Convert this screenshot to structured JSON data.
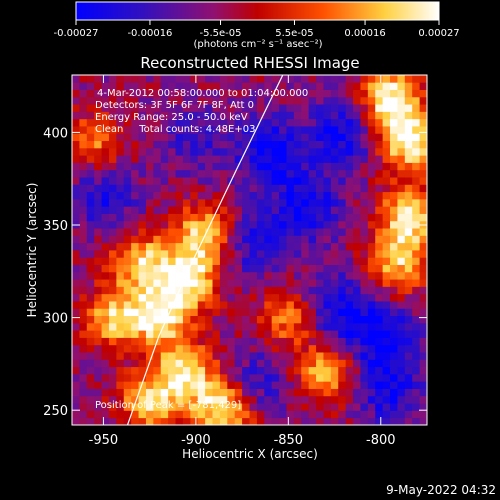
{
  "chart_data": {
    "type": "heatmap",
    "title": "Reconstructed RHESSI Image",
    "xlabel": "Heliocentric X (arcsec)",
    "ylabel": "Heliocentric Y (arcsec)",
    "xlim": [
      -967,
      -775
    ],
    "ylim": [
      242,
      431
    ],
    "xticks": [
      -950,
      -900,
      -850,
      -800
    ],
    "yticks": [
      250,
      300,
      350,
      400
    ],
    "xtick_labels": [
      "-950",
      "-900",
      "-850",
      "-800"
    ],
    "ytick_labels": [
      "250",
      "300",
      "350",
      "400"
    ],
    "colorbar": {
      "ticks": [
        -0.00027,
        -0.00016,
        -5.5e-05,
        5.5e-05,
        0.00016,
        0.00027
      ],
      "tick_labels": [
        "-0.00027",
        "-0.00016",
        "-5.5e-05",
        "5.5e-05",
        "0.00016",
        "0.00027"
      ],
      "vmin": -0.00027,
      "vmax": 0.00027,
      "colors": [
        "#0000ff",
        "#8040c0",
        "#b01010",
        "#ff6000",
        "#ffff80",
        "#ffffff"
      ]
    },
    "grid": false,
    "limb_curve": [
      [
        -937,
        242
      ],
      [
        -920,
        290
      ],
      [
        -902,
        330
      ],
      [
        -878,
        380
      ],
      [
        -853,
        431
      ]
    ],
    "bright_regions": [
      {
        "x": -905,
        "y": 320,
        "level": 0.95
      },
      {
        "x": -920,
        "y": 300,
        "level": 0.9
      },
      {
        "x": -895,
        "y": 345,
        "level": 0.85
      },
      {
        "x": -930,
        "y": 330,
        "level": 0.8
      },
      {
        "x": -905,
        "y": 270,
        "level": 0.85
      },
      {
        "x": -885,
        "y": 250,
        "level": 0.95
      },
      {
        "x": -925,
        "y": 255,
        "level": 0.8
      },
      {
        "x": -945,
        "y": 300,
        "level": 0.75
      },
      {
        "x": -795,
        "y": 418,
        "level": 1.0
      },
      {
        "x": -785,
        "y": 395,
        "level": 0.95
      },
      {
        "x": -785,
        "y": 355,
        "level": 0.85
      },
      {
        "x": -790,
        "y": 330,
        "level": 0.75
      },
      {
        "x": -830,
        "y": 270,
        "level": 0.75
      },
      {
        "x": -850,
        "y": 300,
        "level": 0.6
      },
      {
        "x": -955,
        "y": 395,
        "level": 0.55
      }
    ],
    "dark_regions": [
      {
        "x": -860,
        "y": 390,
        "level": 0.95
      },
      {
        "x": -840,
        "y": 360,
        "level": 0.9
      },
      {
        "x": -820,
        "y": 400,
        "level": 0.85
      },
      {
        "x": -800,
        "y": 290,
        "level": 0.95
      },
      {
        "x": -825,
        "y": 305,
        "level": 0.85
      },
      {
        "x": -870,
        "y": 340,
        "level": 0.7
      },
      {
        "x": -795,
        "y": 260,
        "level": 0.8
      },
      {
        "x": -950,
        "y": 365,
        "level": 0.7
      },
      {
        "x": -900,
        "y": 395,
        "level": 0.5
      },
      {
        "x": -865,
        "y": 265,
        "level": 0.6
      }
    ]
  },
  "colorbar_unit": "(photons cm⁻² s⁻¹ asec⁻²)",
  "annotations": {
    "time_range": "4-Mar-2012 00:58:00.000 to 01:04:00.000",
    "detectors": "Detectors: 3F 5F 6F 7F 8F, Att 0",
    "energy": "Energy Range: 25.0 - 50.0 keV",
    "clean": "Clean     Total counts: 4.48E+03",
    "peak": "Position of Peak = [-781,429]"
  },
  "footer": {
    "timestamp": "9-May-2022 04:32"
  }
}
